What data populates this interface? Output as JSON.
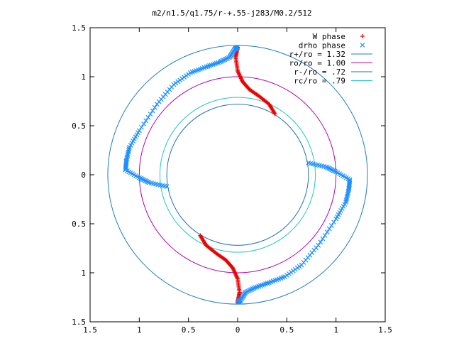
{
  "chart_data": {
    "type": "scatter",
    "title": "m2/n1.5/q1.75/r-+.55-j283/M0.2/512",
    "xlabel": "",
    "ylabel": "",
    "xlim": [
      -1.5,
      1.5
    ],
    "ylim": [
      -1.5,
      1.5
    ],
    "x_ticks": [
      "1.5",
      "1",
      "0.5",
      "0",
      "0.5",
      "1",
      "1.5"
    ],
    "y_ticks": [
      "1.5",
      "1",
      "0.5",
      "0",
      "0.5",
      "1",
      "1.5"
    ],
    "legend": "top-right",
    "circles": [
      {
        "label": "r+/ro = 1.32",
        "radius": 1.32,
        "color": "#1f7fbf"
      },
      {
        "label": "ro/ro = 1.00",
        "radius": 1.0,
        "color": "#b000b0"
      },
      {
        "label": "r-/ro = .72",
        "radius": 0.72,
        "color": "#1f6fbf"
      },
      {
        "label": "rc/ro = .79",
        "radius": 0.79,
        "color": "#20c8c8"
      }
    ],
    "series": [
      {
        "name": "W phase",
        "marker": "plus",
        "color": "#ee0000",
        "arms": [
          {
            "x": [
              0.0,
              -0.02,
              0.0,
              0.05,
              0.12,
              0.22,
              0.32,
              0.38
            ],
            "y": [
              1.3,
              1.2,
              1.06,
              0.95,
              0.87,
              0.8,
              0.72,
              0.62
            ]
          },
          {
            "x": [
              0.0,
              0.02,
              0.0,
              -0.05,
              -0.12,
              -0.22,
              -0.32,
              -0.38
            ],
            "y": [
              -1.3,
              -1.2,
              -1.06,
              -0.95,
              -0.87,
              -0.8,
              -0.72,
              -0.62
            ]
          }
        ]
      },
      {
        "name": "drho phase",
        "marker": "cross",
        "color": "#1e90ff",
        "arms": [
          {
            "x": [
              0.0,
              -0.03,
              -0.08,
              -0.18,
              -0.32,
              -0.48,
              -0.65,
              -0.82,
              -1.0,
              -1.1,
              -1.13,
              -1.14,
              -1.0,
              -0.9,
              -0.72
            ],
            "y": [
              1.3,
              1.28,
              1.2,
              1.15,
              1.1,
              1.04,
              0.92,
              0.72,
              0.45,
              0.28,
              0.15,
              0.05,
              -0.03,
              -0.08,
              -0.12
            ]
          },
          {
            "x": [
              0.0,
              0.03,
              0.08,
              0.18,
              0.32,
              0.48,
              0.65,
              0.82,
              1.0,
              1.1,
              1.13,
              1.14,
              1.0,
              0.9,
              0.72
            ],
            "y": [
              -1.3,
              -1.28,
              -1.2,
              -1.15,
              -1.1,
              -1.04,
              -0.92,
              -0.72,
              -0.45,
              -0.28,
              -0.15,
              -0.05,
              0.03,
              0.08,
              0.12
            ]
          }
        ]
      }
    ]
  }
}
